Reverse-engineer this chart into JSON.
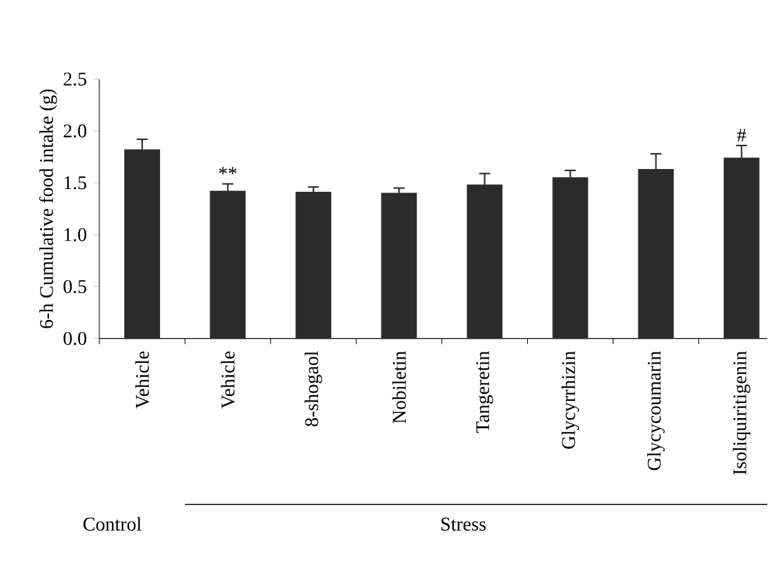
{
  "chart_data": {
    "type": "bar",
    "ylabel": "6-h Cumulative food intake (g)",
    "categories": [
      "Vehicle",
      "Vehicle",
      "8-shogaol",
      "Nobiletin",
      "Tangeretin",
      "Glycyrrhizin",
      "Glycycoumarin",
      "Isoliquiritigenin"
    ],
    "values": [
      1.82,
      1.42,
      1.41,
      1.4,
      1.48,
      1.55,
      1.63,
      1.74
    ],
    "errors": [
      0.1,
      0.07,
      0.05,
      0.05,
      0.11,
      0.07,
      0.15,
      0.12
    ],
    "color": "#2b2b2b",
    "ylim": [
      0,
      2.5
    ],
    "yticks": [
      {
        "value": 0,
        "label": "0.0"
      },
      {
        "value": 0.5,
        "label": "0.5"
      },
      {
        "value": 1,
        "label": "1.0"
      },
      {
        "value": 1.5,
        "label": "1.5"
      },
      {
        "value": 2,
        "label": "2.0"
      },
      {
        "value": 2.5,
        "label": "2.5"
      }
    ],
    "annotations": [
      "**",
      "#",
      "Control",
      "Stress"
    ],
    "grid": false
  }
}
